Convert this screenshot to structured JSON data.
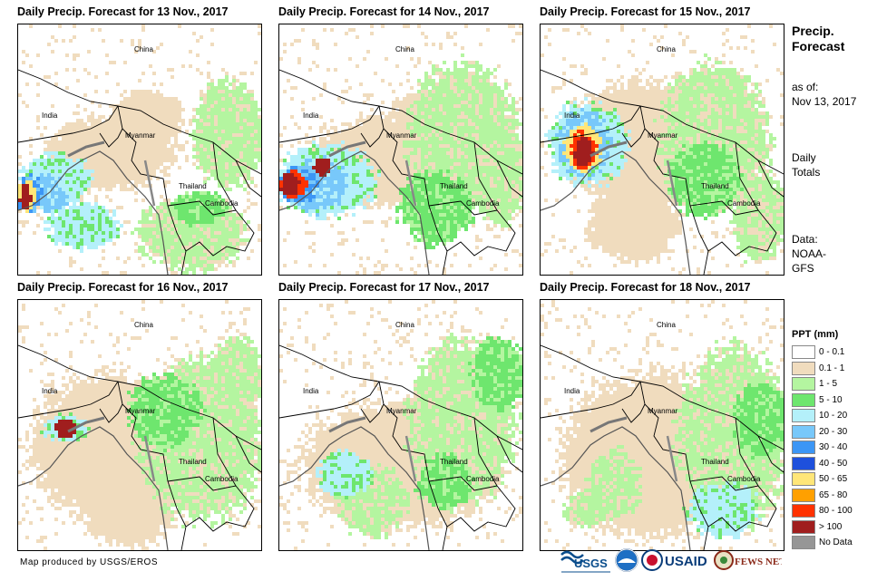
{
  "panels": [
    {
      "title": "Daily Precip. Forecast for 13 Nov., 2017",
      "pattern": 0
    },
    {
      "title": "Daily Precip. Forecast for 14 Nov., 2017",
      "pattern": 1
    },
    {
      "title": "Daily Precip. Forecast for 15 Nov., 2017",
      "pattern": 2
    },
    {
      "title": "Daily Precip. Forecast for 16 Nov., 2017",
      "pattern": 3
    },
    {
      "title": "Daily Precip. Forecast for 17 Nov., 2017",
      "pattern": 4
    },
    {
      "title": "Daily Precip. Forecast for 18 Nov., 2017",
      "pattern": 5
    }
  ],
  "map_labels": {
    "china": "China",
    "india": "India",
    "myanmar": "Myanmar",
    "thailand": "Thailand",
    "cambodia": "Cambodia"
  },
  "side": {
    "title_line1": "Precip.",
    "title_line2": "Forecast",
    "asof_line1": "as of:",
    "asof_line2": "Nov 13, 2017",
    "totals_line1": "Daily",
    "totals_line2": "Totals",
    "data_line1": "Data:",
    "data_line2": "NOAA-",
    "data_line3": "GFS"
  },
  "legend": {
    "title": "PPT (mm)",
    "items": [
      {
        "label": "0 - 0.1",
        "color": "#ffffff"
      },
      {
        "label": "0.1 - 1",
        "color": "#f0dcbe"
      },
      {
        "label": "1 - 5",
        "color": "#b4f5a0"
      },
      {
        "label": "5 - 10",
        "color": "#6ee66e"
      },
      {
        "label": "10 - 20",
        "color": "#b4f0fa"
      },
      {
        "label": "20 - 30",
        "color": "#78c8fa"
      },
      {
        "label": "30 - 40",
        "color": "#3c96f5"
      },
      {
        "label": "40 - 50",
        "color": "#1e50dc"
      },
      {
        "label": "50 - 65",
        "color": "#ffe678"
      },
      {
        "label": "65 - 80",
        "color": "#ffa000"
      },
      {
        "label": "80 - 100",
        "color": "#ff3200"
      },
      {
        "label": "> 100",
        "color": "#a01e1e"
      },
      {
        "label": "No Data",
        "color": "#969696"
      }
    ]
  },
  "credit": "Map produced by USGS/EROS",
  "logos": {
    "usgs": "USGS",
    "usaid": "USAID",
    "fewsnet": "FEWS NET"
  }
}
